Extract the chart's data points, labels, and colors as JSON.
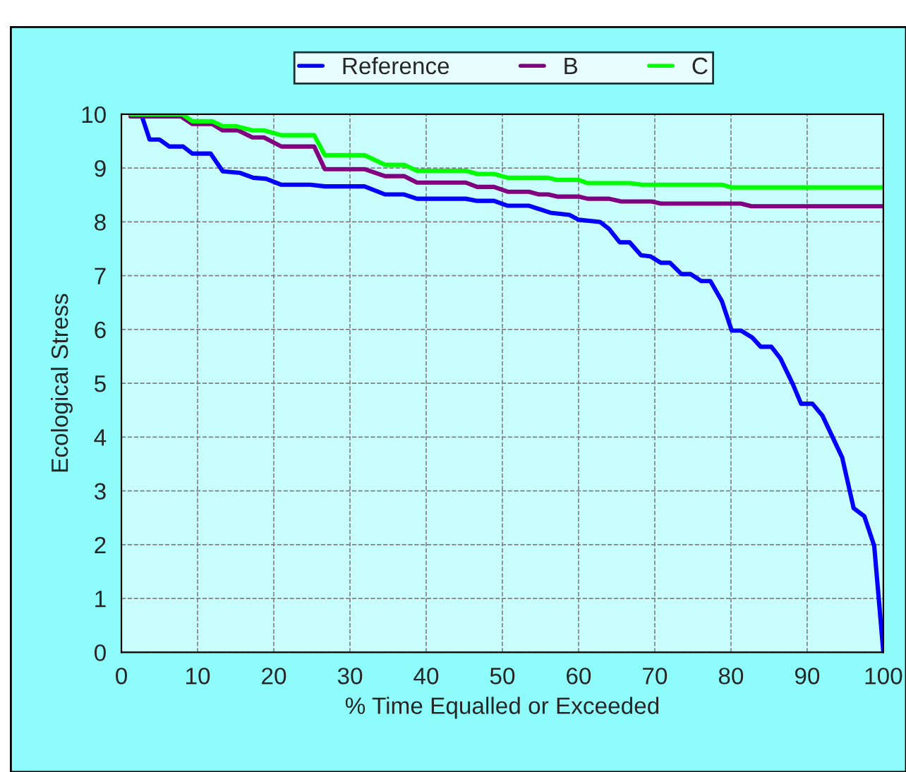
{
  "chart_data": {
    "type": "line",
    "xlabel": "% Time Equalled or Exceeded",
    "ylabel": "Ecological Stress",
    "xlim": [
      0,
      100
    ],
    "xticks": [
      0,
      10,
      20,
      30,
      40,
      50,
      60,
      70,
      80,
      90,
      100
    ],
    "ylim": [
      0,
      10
    ],
    "yticks": [
      0,
      1,
      2,
      3,
      4,
      5,
      6,
      7,
      8,
      9,
      10
    ],
    "grid": true,
    "legend": "top",
    "line_style": "solid",
    "series": [
      {
        "name": "Reference",
        "color": "#0000ff",
        "x": [
          2.6,
          3.7,
          5.0,
          6.3,
          8.1,
          9.3,
          11.7,
          13.3,
          15.6,
          17.3,
          19.0,
          21.0,
          24.8,
          26.7,
          31.9,
          34.6,
          37.1,
          38.8,
          45.2,
          46.7,
          48.9,
          50.7,
          53.5,
          56.3,
          58.8,
          60.0,
          62.8,
          64.0,
          65.4,
          66.7,
          68.2,
          69.4,
          70.8,
          72.0,
          73.5,
          74.7,
          76.1,
          77.3,
          78.8,
          80.1,
          81.3,
          82.8,
          83.9,
          85.3,
          86.5,
          88.1,
          89.2,
          90.7,
          92.0,
          93.3,
          94.6,
          96.1,
          97.5,
          98.8,
          100
        ],
        "values": [
          10,
          9.53,
          9.53,
          9.4,
          9.4,
          9.27,
          9.27,
          8.94,
          8.91,
          8.82,
          8.8,
          8.69,
          8.69,
          8.66,
          8.66,
          8.51,
          8.51,
          8.43,
          8.43,
          8.39,
          8.39,
          8.3,
          8.3,
          8.17,
          8.13,
          8.04,
          8.0,
          7.87,
          7.62,
          7.62,
          7.38,
          7.36,
          7.24,
          7.24,
          7.03,
          7.03,
          6.9,
          6.9,
          6.53,
          5.98,
          5.98,
          5.85,
          5.68,
          5.68,
          5.46,
          4.99,
          4.62,
          4.62,
          4.4,
          4.01,
          3.62,
          2.68,
          2.53,
          1.98,
          0
        ]
      },
      {
        "name": "B",
        "color": "#800080",
        "x": [
          1.2,
          7.8,
          9.3,
          11.9,
          13.3,
          15.3,
          17.2,
          18.7,
          21.0,
          25.3,
          26.7,
          31.9,
          34.6,
          37.1,
          38.8,
          45.2,
          46.7,
          48.9,
          50.7,
          53.5,
          54.8,
          56.0,
          57.2,
          60.0,
          61.2,
          64.0,
          65.6,
          69.6,
          70.8,
          81.3,
          82.7,
          100
        ],
        "values": [
          9.96,
          9.96,
          9.82,
          9.82,
          9.7,
          9.7,
          9.57,
          9.57,
          9.4,
          9.4,
          8.98,
          8.98,
          8.85,
          8.85,
          8.73,
          8.73,
          8.65,
          8.65,
          8.56,
          8.56,
          8.51,
          8.51,
          8.47,
          8.47,
          8.43,
          8.43,
          8.38,
          8.38,
          8.34,
          8.34,
          8.29,
          8.29
        ]
      },
      {
        "name": "C",
        "color": "#00ff00",
        "x": [
          1.2,
          8.0,
          9.3,
          11.9,
          13.3,
          15.0,
          17.2,
          18.7,
          21.0,
          25.3,
          26.7,
          31.9,
          34.6,
          37.1,
          38.8,
          45.2,
          46.7,
          48.9,
          50.7,
          56.0,
          57.2,
          60.0,
          61.2,
          66.7,
          68.3,
          78.8,
          80.1,
          100
        ],
        "values": [
          10,
          10,
          9.87,
          9.87,
          9.78,
          9.78,
          9.7,
          9.7,
          9.61,
          9.61,
          9.24,
          9.24,
          9.06,
          9.06,
          8.95,
          8.95,
          8.89,
          8.89,
          8.82,
          8.82,
          8.78,
          8.78,
          8.72,
          8.72,
          8.69,
          8.69,
          8.64,
          8.64
        ]
      }
    ]
  }
}
